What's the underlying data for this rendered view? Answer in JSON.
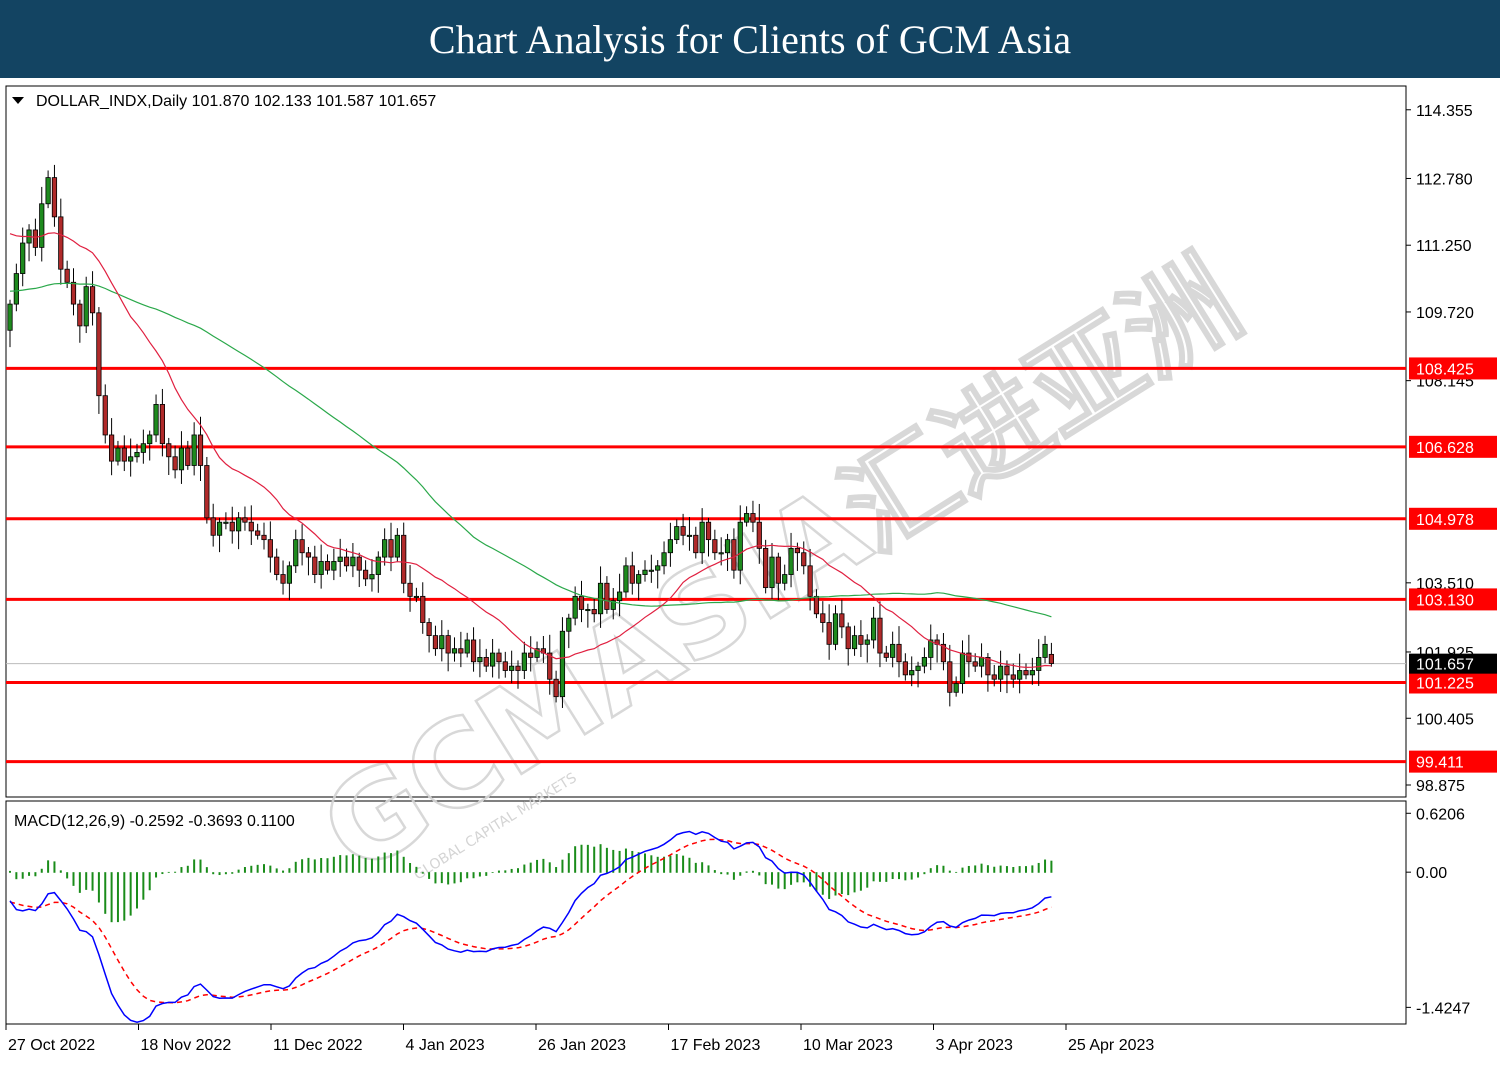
{
  "banner": {
    "title": "Chart Analysis for Clients of GCM Asia"
  },
  "watermark": {
    "brand": "GCMASIA",
    "cjk": "汇进亚洲",
    "sub": "GLOBAL CAPITAL MARKETS"
  },
  "colors": {
    "banner": "#134462",
    "up_candle": "#1e8a1e",
    "down_candle": "#b02a2a",
    "sma_fast": "#e02040",
    "sma_slow": "#2aa84a",
    "level": "#ff0000",
    "macd_line": "#0000ff",
    "signal_line": "#ff0000",
    "histogram": "#1a8c1a"
  },
  "chart_data": [
    {
      "type": "candlestick",
      "symbol_info": "DOLLAR_INDX,Daily  101.870 102.133 101.587 101.657",
      "symbol": "DOLLAR_INDX",
      "timeframe": "Daily",
      "ohlc_last": {
        "open": 101.87,
        "high": 102.133,
        "low": 101.587,
        "close": 101.657
      },
      "ylim": [
        98.6,
        114.9
      ],
      "y_ticks": [
        "114.355",
        "112.780",
        "111.250",
        "109.720",
        "108.145",
        "103.510",
        "101.925",
        "100.405",
        "98.875"
      ],
      "x_ticks": [
        "27 Oct 2022",
        "18 Nov 2022",
        "11 Dec 2022",
        "4 Jan 2023",
        "26 Jan 2023",
        "17 Feb 2023",
        "10 Mar 2023",
        "3 Apr 2023",
        "25 Apr 2023"
      ],
      "levels": [
        "108.425",
        "106.628",
        "104.978",
        "103.130",
        "101.225",
        "99.411"
      ],
      "current_price": "101.657",
      "grid": false,
      "closes": [
        109.9,
        110.6,
        111.3,
        111.6,
        111.2,
        112.2,
        112.8,
        111.9,
        110.7,
        110.4,
        109.9,
        109.4,
        110.3,
        109.7,
        107.8,
        106.9,
        106.3,
        106.6,
        106.3,
        106.4,
        106.5,
        106.7,
        106.9,
        107.6,
        106.7,
        106.4,
        106.1,
        106.6,
        106.2,
        106.9,
        106.2,
        105.0,
        104.6,
        104.9,
        104.9,
        104.7,
        105.0,
        104.9,
        104.7,
        104.6,
        104.5,
        104.1,
        103.7,
        103.5,
        103.9,
        104.5,
        104.2,
        104.1,
        103.7,
        104.0,
        103.8,
        104.0,
        104.1,
        103.9,
        104.1,
        103.8,
        103.6,
        103.7,
        104.1,
        104.5,
        104.1,
        104.6,
        103.5,
        103.2,
        103.2,
        102.6,
        102.3,
        102.0,
        102.3,
        101.9,
        102.0,
        101.9,
        102.2,
        101.7,
        101.8,
        101.6,
        101.9,
        101.7,
        101.5,
        101.6,
        101.5,
        101.9,
        101.8,
        102.0,
        101.9,
        101.3,
        100.9,
        102.4,
        102.7,
        103.2,
        102.9,
        102.9,
        102.8,
        103.5,
        102.9,
        103.1,
        103.3,
        103.9,
        103.5,
        103.7,
        103.8,
        103.8,
        103.9,
        104.2,
        104.5,
        104.8,
        104.6,
        104.6,
        104.2,
        104.9,
        104.5,
        104.2,
        104.2,
        104.5,
        103.8,
        104.9,
        105.1,
        104.9,
        104.3,
        103.4,
        104.1,
        103.5,
        103.7,
        104.3,
        104.2,
        103.9,
        103.2,
        102.8,
        102.6,
        102.1,
        102.8,
        102.5,
        102.0,
        102.3,
        102.1,
        102.2,
        102.7,
        101.9,
        101.8,
        102.1,
        101.7,
        101.4,
        101.5,
        101.6,
        101.8,
        102.2,
        102.1,
        101.7,
        101.0,
        101.2,
        101.9,
        101.7,
        101.6,
        101.8,
        101.4,
        101.3,
        101.6,
        101.4,
        101.3,
        101.5,
        101.4,
        101.5,
        101.8,
        102.1,
        101.66
      ]
    },
    {
      "type": "line",
      "indicator_info": "MACD(12,26,9) -0.2592 -0.3693 0.1100",
      "name": "MACD(12,26,9)",
      "values": {
        "macd": -0.2592,
        "signal": -0.3693,
        "histogram": 0.11
      },
      "ylim": [
        -1.6,
        0.75
      ],
      "y_ticks": [
        "0.6206",
        "0.00",
        "-1.4247"
      ]
    }
  ]
}
